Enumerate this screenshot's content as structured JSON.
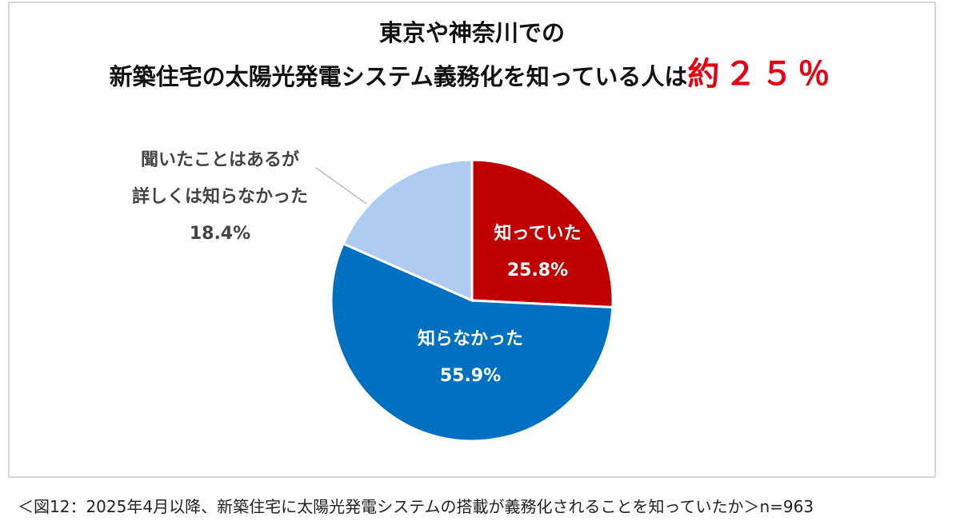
{
  "chart_data": {
    "type": "pie",
    "title": [
      "東京や神奈川での",
      "新築住宅の太陽光発電システム義務化を知っている人は"
    ],
    "title_highlight": "約２５％",
    "categories": [
      "知っていた",
      "知らなかった",
      "聞いたことはあるが\n詳しくは知らなかった"
    ],
    "values": [
      25.8,
      55.9,
      18.4
    ],
    "value_labels": [
      "25.8%",
      "55.9%",
      "18.4%"
    ],
    "colors": [
      "#c00000",
      "#0070c0",
      "#aecbf0"
    ],
    "caption": "＜図12：2025年4月以降、新築住宅に太陽光発電システムの搭載が義務化されることを知っていたか＞n=963"
  }
}
